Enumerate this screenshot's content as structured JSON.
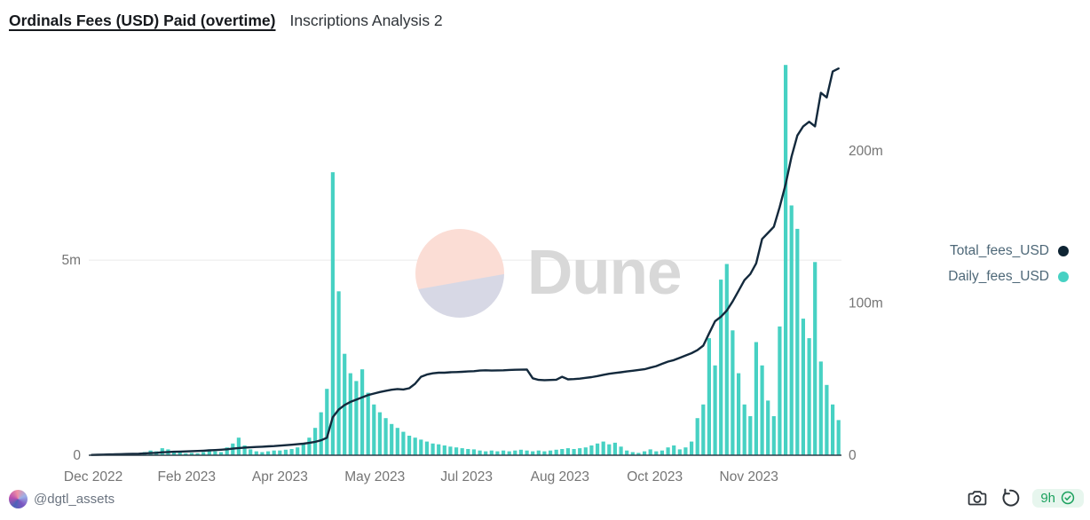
{
  "header": {
    "title": "Ordinals Fees (USD) Paid (overtime)",
    "subtitle": "Inscriptions Analysis 2"
  },
  "watermark": {
    "label": "Dune"
  },
  "legend": [
    {
      "label": "Total_fees_USD",
      "color": "#0e2433"
    },
    {
      "label": "Daily_fees_USD",
      "color": "#47d1c3"
    }
  ],
  "footer": {
    "author": "@dgtl_assets",
    "age_badge": "9h",
    "badge_color": "#1ca15e",
    "badge_bg": "#e7f6ee"
  },
  "chart_data": {
    "type": "combo",
    "title": "Ordinals Fees (USD) Paid (overtime)",
    "unit": "USD millions (m)",
    "grid": "single horizontal gridline at left-axis 5m",
    "legend_position": "right",
    "x_ticks": [
      {
        "label": "Dec 2022",
        "pos": 0.006
      },
      {
        "label": "Feb 2023",
        "pos": 0.13
      },
      {
        "label": "Apr 2023",
        "pos": 0.254
      },
      {
        "label": "May 2023",
        "pos": 0.38
      },
      {
        "label": "Jul 2023",
        "pos": 0.502
      },
      {
        "label": "Aug 2023",
        "pos": 0.626
      },
      {
        "label": "Oct 2023",
        "pos": 0.752
      },
      {
        "label": "Nov 2023",
        "pos": 0.877
      }
    ],
    "left_axis": {
      "ticks": [
        {
          "label": "0",
          "value": 0
        },
        {
          "label": "5m",
          "value": 5
        }
      ],
      "max": 10.3
    },
    "right_axis": {
      "ticks": [
        {
          "label": "0",
          "value": 0
        },
        {
          "label": "100m",
          "value": 100
        },
        {
          "label": "200m",
          "value": 200
        }
      ],
      "max": 264
    },
    "series": [
      {
        "name": "Daily_fees_USD",
        "type": "bar",
        "axis": "left",
        "color": "#47d1c3",
        "values": [
          0.01,
          0.01,
          0.02,
          0.02,
          0.02,
          0.03,
          0.03,
          0.04,
          0.05,
          0.08,
          0.12,
          0.1,
          0.18,
          0.15,
          0.09,
          0.07,
          0.05,
          0.06,
          0.05,
          0.08,
          0.15,
          0.1,
          0.08,
          0.2,
          0.3,
          0.45,
          0.25,
          0.15,
          0.1,
          0.08,
          0.1,
          0.12,
          0.12,
          0.14,
          0.16,
          0.2,
          0.3,
          0.45,
          0.7,
          1.1,
          1.7,
          7.25,
          4.2,
          2.6,
          2.1,
          1.9,
          2.2,
          1.6,
          1.3,
          1.1,
          0.95,
          0.8,
          0.7,
          0.6,
          0.5,
          0.45,
          0.4,
          0.35,
          0.3,
          0.28,
          0.25,
          0.22,
          0.2,
          0.18,
          0.16,
          0.15,
          0.12,
          0.1,
          0.12,
          0.1,
          0.12,
          0.1,
          0.12,
          0.14,
          0.12,
          0.1,
          0.12,
          0.1,
          0.12,
          0.14,
          0.16,
          0.18,
          0.16,
          0.18,
          0.2,
          0.25,
          0.3,
          0.35,
          0.28,
          0.32,
          0.22,
          0.12,
          0.08,
          0.06,
          0.1,
          0.15,
          0.1,
          0.12,
          0.2,
          0.25,
          0.15,
          0.2,
          0.35,
          0.95,
          1.3,
          3.0,
          2.3,
          4.5,
          4.9,
          3.2,
          2.1,
          1.3,
          1.0,
          2.9,
          2.3,
          1.4,
          1.0,
          3.3,
          10.0,
          6.4,
          5.8,
          3.5,
          3.0,
          4.95,
          2.4,
          1.8,
          1.3,
          0.9
        ]
      },
      {
        "name": "Total_fees_USD",
        "type": "line",
        "axis": "right",
        "color": "#13293c",
        "values": [
          0.2,
          0.3,
          0.4,
          0.5,
          0.6,
          0.7,
          0.8,
          0.9,
          1.0,
          1.2,
          1.4,
          1.6,
          1.9,
          2.1,
          2.3,
          2.4,
          2.5,
          2.7,
          2.8,
          3.0,
          3.2,
          3.4,
          3.6,
          3.9,
          4.3,
          4.7,
          5.0,
          5.2,
          5.4,
          5.6,
          5.8,
          6.0,
          6.3,
          6.6,
          6.9,
          7.2,
          7.6,
          8.1,
          8.8,
          9.8,
          11.5,
          25.0,
          30.0,
          33.0,
          35.0,
          36.5,
          38.0,
          39.5,
          40.5,
          41.5,
          42.3,
          43.0,
          43.5,
          43.2,
          44.0,
          47.0,
          51.5,
          53.0,
          53.8,
          54.2,
          54.2,
          54.5,
          54.6,
          54.8,
          55.0,
          55.2,
          55.6,
          55.8,
          55.6,
          55.7,
          55.8,
          56.0,
          56.1,
          56.2,
          56.3,
          50.5,
          49.5,
          49.3,
          49.4,
          49.6,
          51.5,
          49.8,
          50.0,
          50.3,
          50.8,
          51.3,
          52.0,
          52.8,
          53.5,
          54.0,
          54.5,
          55.0,
          55.5,
          56.0,
          56.5,
          57.5,
          58.5,
          60.0,
          61.5,
          62.5,
          64.0,
          65.5,
          67.0,
          69.0,
          72.0,
          80.0,
          88.0,
          91.0,
          95.0,
          101.0,
          108.0,
          115.0,
          119.0,
          126.0,
          142.0,
          146.0,
          150.0,
          163.0,
          178.0,
          196.0,
          210.0,
          216.0,
          219.0,
          216.0,
          238.0,
          235.0,
          252.0,
          254.0
        ]
      }
    ]
  }
}
